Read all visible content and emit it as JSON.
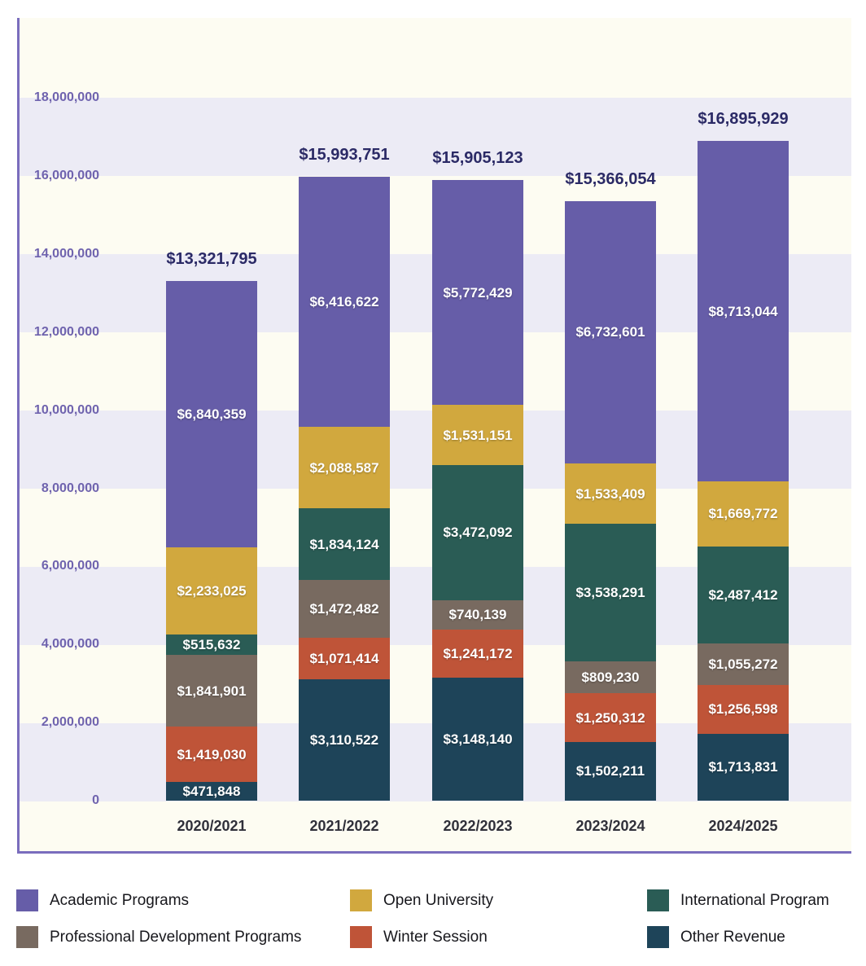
{
  "chart_data": {
    "type": "bar",
    "stacked": true,
    "title": "",
    "xlabel": "",
    "ylabel": "",
    "grid": "horizontal-bands",
    "legend_position": "bottom",
    "ylim": [
      0,
      20000000
    ],
    "categories": [
      "2020/2021",
      "2021/2022",
      "2022/2023",
      "2023/2024",
      "2024/2025"
    ],
    "series": [
      {
        "name": "Other Revenue",
        "color": "#1E4459",
        "values": [
          471848,
          3110522,
          3148140,
          1502211,
          1713831
        ],
        "labels": [
          "$471,848",
          "$3,110,522",
          "$3,148,140",
          "$1,502,211",
          "$1,713,831"
        ]
      },
      {
        "name": "Winter Session",
        "color": "#BF5438",
        "values": [
          1419030,
          1071414,
          1241172,
          1250312,
          1256598
        ],
        "labels": [
          "$1,419,030",
          "$1,071,414",
          "$1,241,172",
          "$1,250,312",
          "$1,256,598"
        ]
      },
      {
        "name": "Professional Development Programs",
        "color": "#786A60",
        "values": [
          1841901,
          1472482,
          740139,
          809230,
          1055272
        ],
        "labels": [
          "$1,841,901",
          "$1,472,482",
          "$740,139",
          "$809,230",
          "$1,055,272"
        ]
      },
      {
        "name": "International Program",
        "color": "#2A5C55",
        "values": [
          515632,
          1834124,
          3472092,
          3538291,
          2487412
        ],
        "labels": [
          "$515,632",
          "$1,834,124",
          "$3,472,092",
          "$3,538,291",
          "$2,487,412"
        ]
      },
      {
        "name": "Open University",
        "color": "#D1A83E",
        "values": [
          2233025,
          2088587,
          1531151,
          1533409,
          1669772
        ],
        "labels": [
          "$2,233,025",
          "$2,088,587",
          "$1,531,151",
          "$1,533,409",
          "$1,669,772"
        ]
      },
      {
        "name": "Academic Programs",
        "color": "#665DA8",
        "values": [
          6840359,
          6416622,
          5772429,
          6732601,
          8713044
        ],
        "labels": [
          "$6,840,359",
          "$6,416,622",
          "$5,772,429",
          "$6,732,601",
          "$8,713,044"
        ]
      }
    ],
    "totals": [
      13321795,
      15993751,
      15905123,
      15366054,
      16895929
    ],
    "total_labels": [
      "$13,321,795",
      "$15,993,751",
      "$15,905,123",
      "$15,366,054",
      "$16,895,929"
    ],
    "y_axis": {
      "tick_values": [
        18000000,
        16000000,
        14000000,
        12000000,
        10000000,
        8000000,
        6000000,
        4000000,
        2000000,
        0
      ],
      "tick_labels": [
        "18,000,000",
        "16,000,000",
        "14,000,000",
        "12,000,000",
        "10,000,000",
        "8,000,000",
        "6,000,000",
        "4,000,000",
        "2,000,000",
        "0"
      ]
    },
    "legend": [
      {
        "name": "Academic Programs",
        "color": "#665DA8"
      },
      {
        "name": "Open University",
        "color": "#D1A83E"
      },
      {
        "name": "International Program",
        "color": "#2A5C55"
      },
      {
        "name": "Professional Development Programs",
        "color": "#786A60"
      },
      {
        "name": "Winter Session",
        "color": "#BF5438"
      },
      {
        "name": "Other Revenue",
        "color": "#1E4459"
      }
    ],
    "colors": {
      "axis_line": "#7A6DBD",
      "band_cream": "#FDFCF2",
      "band_lavender": "#ECEBF5",
      "y_tick_text": "#6F63AE",
      "total_text": "#2B2A66",
      "x_tick_text": "#30303A"
    }
  }
}
